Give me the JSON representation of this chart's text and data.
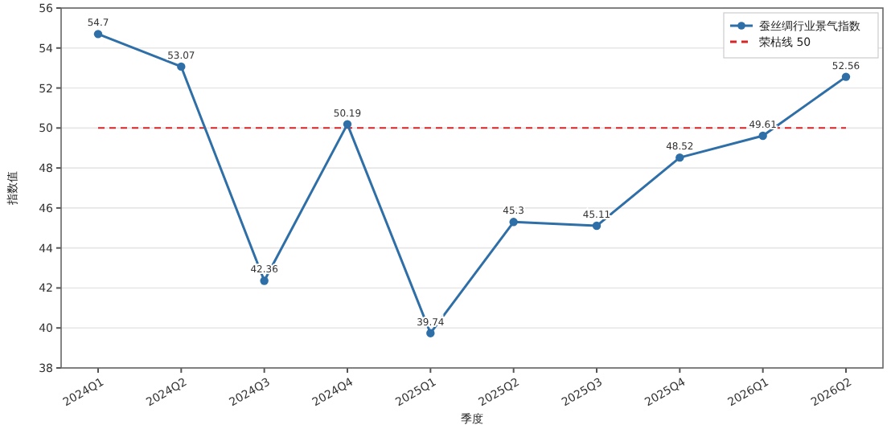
{
  "chart_data": {
    "type": "line",
    "xlabel": "季度",
    "ylabel": "指数值",
    "categories": [
      "2024Q1",
      "2024Q2",
      "2024Q3",
      "2024Q4",
      "2025Q1",
      "2025Q2",
      "2025Q3",
      "2025Q4",
      "2026Q1",
      "2026Q2"
    ],
    "series": [
      {
        "name": "蚕丝绸行业景气指数",
        "color": "#2f6fa8",
        "values": [
          54.7,
          53.07,
          42.36,
          50.19,
          39.74,
          45.3,
          45.11,
          48.52,
          49.61,
          52.56
        ]
      }
    ],
    "ref_lines": [
      {
        "axis": "y",
        "value": 50,
        "label": "荣枯线 50",
        "color": "#d62728",
        "line_style": "dashed"
      }
    ],
    "ylim": [
      38,
      56
    ],
    "yticks": [
      38,
      40,
      42,
      44,
      46,
      48,
      50,
      52,
      54,
      56
    ],
    "grid": "y",
    "legend": "top right",
    "marker": "circle",
    "line_style": "solid",
    "data_labels": true
  }
}
